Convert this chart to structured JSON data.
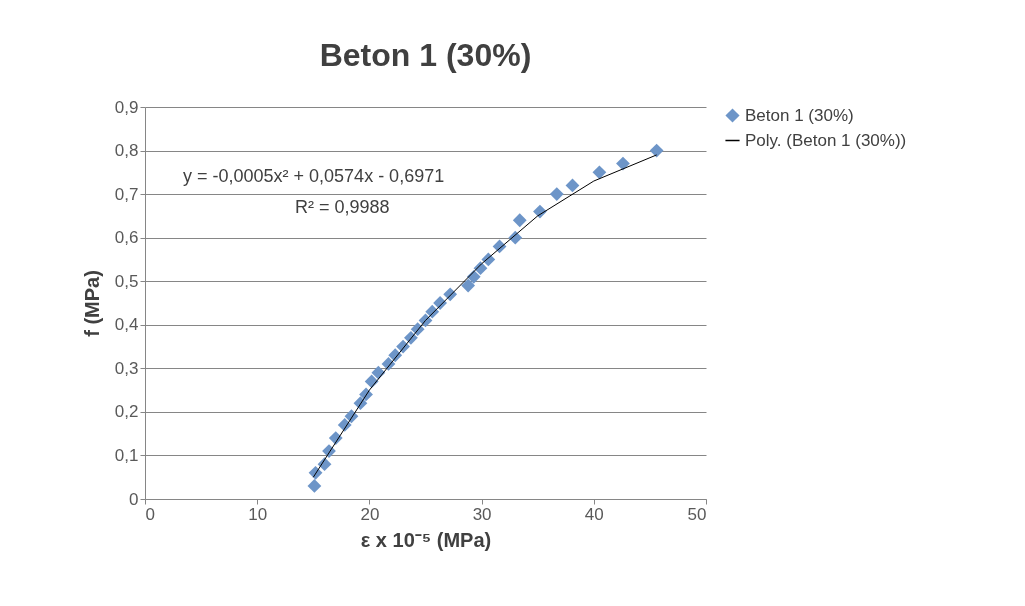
{
  "chart_data": {
    "type": "scatter",
    "title": "Beton 1 (30%)",
    "xlabel": "ε x 10⁻⁵ (MPa)",
    "ylabel": "f (MPa)",
    "xlim": [
      0,
      50
    ],
    "xticks": [
      0,
      10,
      20,
      30,
      40,
      50
    ],
    "ylim": [
      0,
      0.9
    ],
    "yticks": [
      {
        "value": 0,
        "label": "0"
      },
      {
        "value": 0.1,
        "label": "0,1"
      },
      {
        "value": 0.2,
        "label": "0,2"
      },
      {
        "value": 0.3,
        "label": "0,3"
      },
      {
        "value": 0.4,
        "label": "0,4"
      },
      {
        "value": 0.5,
        "label": "0,5"
      },
      {
        "value": 0.6,
        "label": "0,6"
      },
      {
        "value": 0.7,
        "label": "0,7"
      },
      {
        "value": 0.8,
        "label": "0,8"
      },
      {
        "value": 0.9,
        "label": "0,9"
      }
    ],
    "grid": "y",
    "legend": "right",
    "annotations": [
      "y = -0,0005x² + 0,0574x - 0,6971",
      "R² = 0,9988"
    ],
    "series": [
      {
        "name": "Beton 1 (30%)",
        "marker": "diamond",
        "color": "#6d95c8",
        "x": [
          15.1,
          15.2,
          16.0,
          16.4,
          17.0,
          17.8,
          18.4,
          19.2,
          19.7,
          20.2,
          20.8,
          21.7,
          22.3,
          23.0,
          23.7,
          24.3,
          25.0,
          25.6,
          26.3,
          27.2,
          28.8,
          29.3,
          29.9,
          30.6,
          31.6,
          33.0,
          33.4,
          35.2,
          36.7,
          38.1,
          40.5,
          42.6,
          45.6
        ],
        "values": [
          0.03,
          0.06,
          0.08,
          0.11,
          0.14,
          0.17,
          0.19,
          0.22,
          0.24,
          0.27,
          0.29,
          0.31,
          0.33,
          0.35,
          0.37,
          0.39,
          0.41,
          0.43,
          0.45,
          0.47,
          0.49,
          0.51,
          0.53,
          0.55,
          0.58,
          0.6,
          0.64,
          0.66,
          0.7,
          0.72,
          0.75,
          0.77,
          0.8
        ]
      },
      {
        "name": "Poly. (Beton 1 (30%))",
        "type": "line",
        "color": "#000000",
        "x": [
          15,
          20,
          25,
          30,
          35,
          40,
          45.6
        ],
        "values": [
          0.05,
          0.25,
          0.41,
          0.54,
          0.65,
          0.73,
          0.79
        ]
      }
    ]
  }
}
